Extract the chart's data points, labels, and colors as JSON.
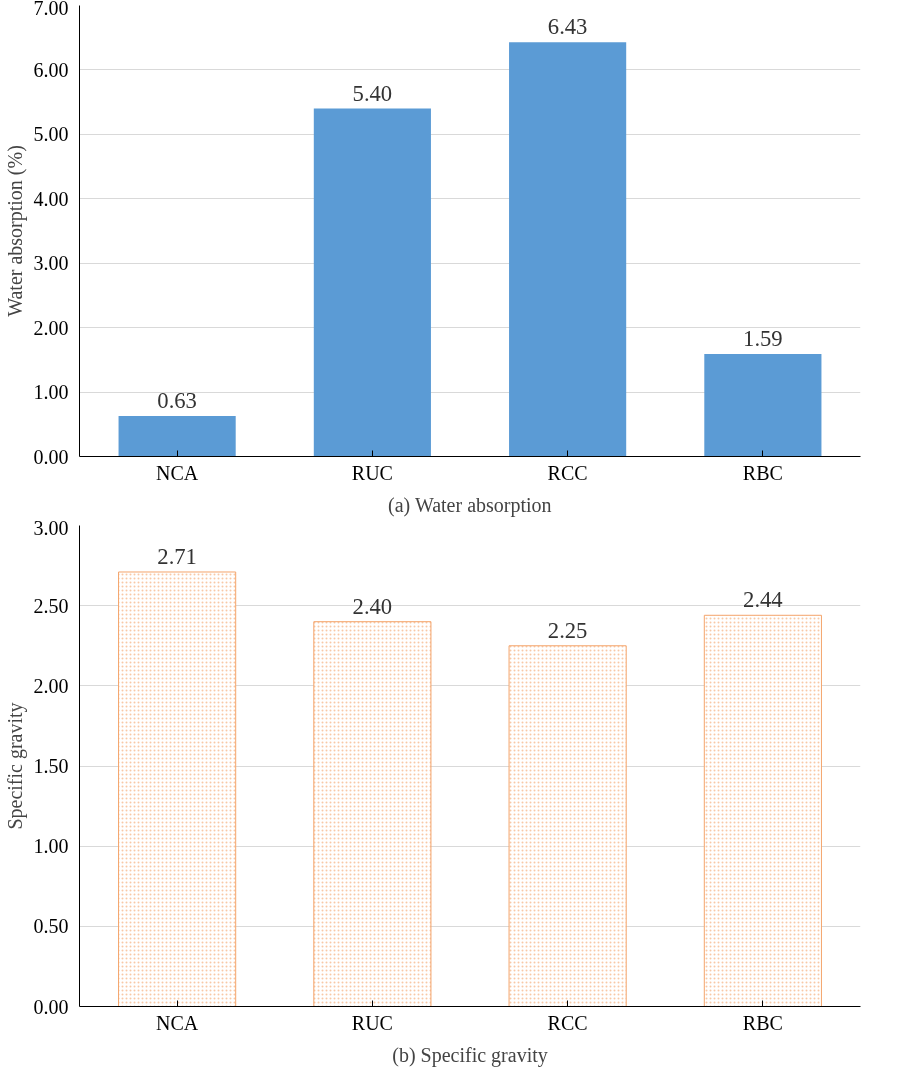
{
  "chart_data": [
    {
      "type": "bar",
      "title": "(a) Water absorption",
      "ylabel": "Water absorption (%)",
      "categories": [
        "NCA",
        "RUC",
        "RCC",
        "RBC"
      ],
      "values": [
        0.63,
        5.4,
        6.43,
        1.59
      ],
      "value_labels": [
        "0.63",
        "5.40",
        "6.43",
        "1.59"
      ],
      "color": "#5b9bd5",
      "ylim": [
        0,
        7
      ],
      "yticks": [
        {
          "value": 0,
          "label": "0.00"
        },
        {
          "value": 1,
          "label": "1.00"
        },
        {
          "value": 2,
          "label": "2.00"
        },
        {
          "value": 3,
          "label": "3.00"
        },
        {
          "value": 4,
          "label": "4.00"
        },
        {
          "value": 5,
          "label": "5.00"
        },
        {
          "value": 6,
          "label": "6.00"
        },
        {
          "value": 7,
          "label": "7.00"
        }
      ],
      "grid": "y"
    },
    {
      "type": "bar",
      "title": "(b) Specific gravity",
      "ylabel": "Specific gravity",
      "categories": [
        "NCA",
        "RUC",
        "RCC",
        "RBC"
      ],
      "values": [
        2.71,
        2.4,
        2.25,
        2.44
      ],
      "value_labels": [
        "2.71",
        "2.40",
        "2.25",
        "2.44"
      ],
      "color": "#f4a46b",
      "ylim": [
        0,
        3
      ],
      "yticks": [
        {
          "value": 0,
          "label": "0.00"
        },
        {
          "value": 0.5,
          "label": "0.50"
        },
        {
          "value": 1,
          "label": "1.00"
        },
        {
          "value": 1.5,
          "label": "1.50"
        },
        {
          "value": 2,
          "label": "2.00"
        },
        {
          "value": 2.5,
          "label": "2.50"
        },
        {
          "value": 3,
          "label": "3.00"
        }
      ],
      "grid": "y"
    }
  ]
}
